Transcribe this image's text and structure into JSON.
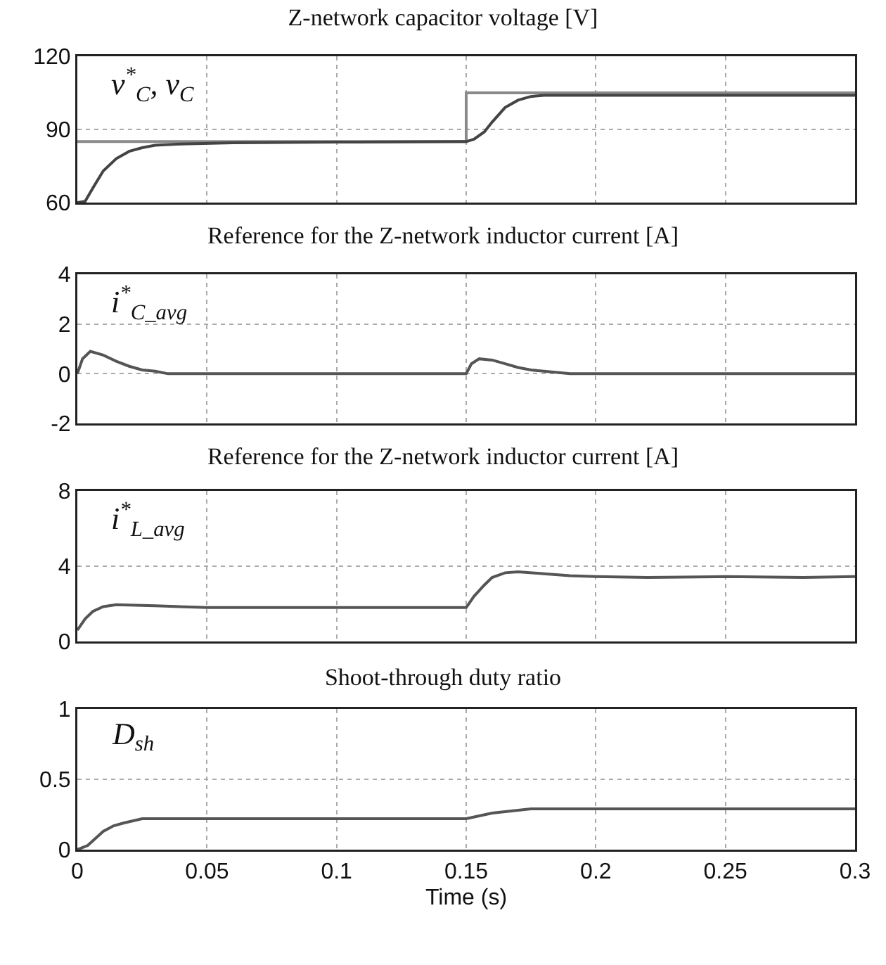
{
  "chart_data": [
    {
      "type": "line",
      "title": "Z-network capacitor voltage [V]",
      "annotations": [
        "v$^{*}$$_{C}$, v$_{C}$"
      ],
      "xlim": [
        0,
        0.3
      ],
      "xticks": [
        0,
        0.05,
        0.1,
        0.15,
        0.2,
        0.25,
        0.3
      ],
      "ylim": [
        60,
        120
      ],
      "yticks": [
        60,
        90,
        120
      ],
      "grid": true,
      "tick_labels": "y",
      "series": [
        {
          "color": "#8a8a8a",
          "x": [
            0,
            0.15,
            0.15,
            0.3
          ],
          "values": [
            85,
            85,
            105,
            105
          ]
        },
        {
          "color": "#444444",
          "x": [
            0,
            0.003,
            0.006,
            0.01,
            0.015,
            0.02,
            0.025,
            0.03,
            0.04,
            0.06,
            0.1,
            0.15,
            0.153,
            0.157,
            0.16,
            0.165,
            0.17,
            0.175,
            0.18,
            0.2,
            0.25,
            0.3
          ],
          "values": [
            60,
            60.5,
            66,
            73,
            78,
            81,
            82.5,
            83.5,
            84,
            84.5,
            84.8,
            85,
            86,
            89,
            93,
            99,
            102,
            103.5,
            104,
            104,
            104,
            104
          ]
        }
      ]
    },
    {
      "type": "line",
      "title": "Reference for the Z-network inductor current [A]",
      "annotations": [
        "i$^{*}$$_{C_avg}$"
      ],
      "xlim": [
        0,
        0.3
      ],
      "xticks": [
        0,
        0.05,
        0.1,
        0.15,
        0.2,
        0.25,
        0.3
      ],
      "ylim": [
        -2,
        4
      ],
      "yticks": [
        -2,
        0,
        2,
        4
      ],
      "grid": true,
      "tick_labels": "y",
      "series": [
        {
          "color": "#555555",
          "x": [
            0,
            0.002,
            0.005,
            0.01,
            0.015,
            0.02,
            0.025,
            0.03,
            0.035,
            0.1,
            0.15,
            0.152,
            0.155,
            0.16,
            0.165,
            0.17,
            0.175,
            0.18,
            0.19,
            0.25,
            0.3
          ],
          "values": [
            0,
            0.6,
            0.9,
            0.75,
            0.5,
            0.3,
            0.15,
            0.1,
            0,
            0,
            0,
            0.4,
            0.6,
            0.55,
            0.4,
            0.25,
            0.15,
            0.1,
            0,
            0,
            0
          ]
        }
      ]
    },
    {
      "type": "line",
      "title": "Reference for the Z-network inductor current [A]",
      "annotations": [
        "i$^{*}$$_{L_avg}$"
      ],
      "xlim": [
        0,
        0.3
      ],
      "xticks": [
        0,
        0.05,
        0.1,
        0.15,
        0.2,
        0.25,
        0.3
      ],
      "ylim": [
        0,
        8
      ],
      "yticks": [
        0,
        4,
        8
      ],
      "grid": true,
      "tick_labels": "y",
      "series": [
        {
          "color": "#555555",
          "x": [
            0,
            0.003,
            0.006,
            0.01,
            0.015,
            0.03,
            0.05,
            0.1,
            0.15,
            0.153,
            0.157,
            0.16,
            0.165,
            0.17,
            0.18,
            0.19,
            0.2,
            0.22,
            0.25,
            0.28,
            0.3
          ],
          "values": [
            0.6,
            1.2,
            1.6,
            1.85,
            1.95,
            1.9,
            1.8,
            1.8,
            1.8,
            2.4,
            3.0,
            3.4,
            3.65,
            3.7,
            3.6,
            3.5,
            3.45,
            3.4,
            3.45,
            3.4,
            3.45
          ]
        }
      ]
    },
    {
      "type": "line",
      "title": "Shoot-through duty ratio",
      "annotations": [
        "D$_{sh}$"
      ],
      "xlabel": "Time (s)",
      "xlim": [
        0,
        0.3
      ],
      "xticks": [
        0,
        0.05,
        0.1,
        0.15,
        0.2,
        0.25,
        0.3
      ],
      "ylim": [
        0,
        1
      ],
      "yticks": [
        0,
        0.5,
        1
      ],
      "grid": true,
      "series": [
        {
          "color": "#555555",
          "x": [
            0,
            0.004,
            0.007,
            0.01,
            0.014,
            0.018,
            0.025,
            0.05,
            0.1,
            0.15,
            0.155,
            0.16,
            0.165,
            0.17,
            0.175,
            0.2,
            0.25,
            0.3
          ],
          "values": [
            0,
            0.03,
            0.08,
            0.13,
            0.17,
            0.19,
            0.22,
            0.22,
            0.22,
            0.22,
            0.24,
            0.26,
            0.27,
            0.28,
            0.29,
            0.29,
            0.29,
            0.29
          ]
        }
      ]
    }
  ]
}
